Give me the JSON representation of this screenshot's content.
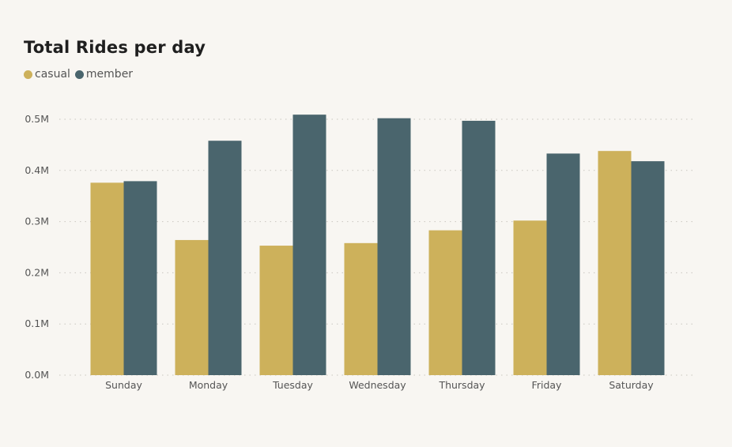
{
  "chart_data": {
    "type": "bar",
    "title": "Total Rides per day",
    "xlabel": "",
    "ylabel": "",
    "categories": [
      "Sunday",
      "Monday",
      "Tuesday",
      "Wednesday",
      "Thursday",
      "Friday",
      "Saturday"
    ],
    "series": [
      {
        "name": "casual",
        "color": "#cdb15b",
        "values": [
          376000,
          264000,
          253000,
          258000,
          283000,
          302000,
          438000
        ]
      },
      {
        "name": "member",
        "color": "#4a656d",
        "values": [
          379000,
          458000,
          509000,
          502000,
          497000,
          433000,
          418000
        ]
      }
    ],
    "ylim": [
      0,
      500000
    ],
    "yticks": [
      0,
      100000,
      200000,
      300000,
      400000,
      500000
    ],
    "ytick_labels": [
      "0.0M",
      "0.1M",
      "0.2M",
      "0.3M",
      "0.4M",
      "0.5M"
    ],
    "grid": true,
    "legend_position": "top-left"
  }
}
